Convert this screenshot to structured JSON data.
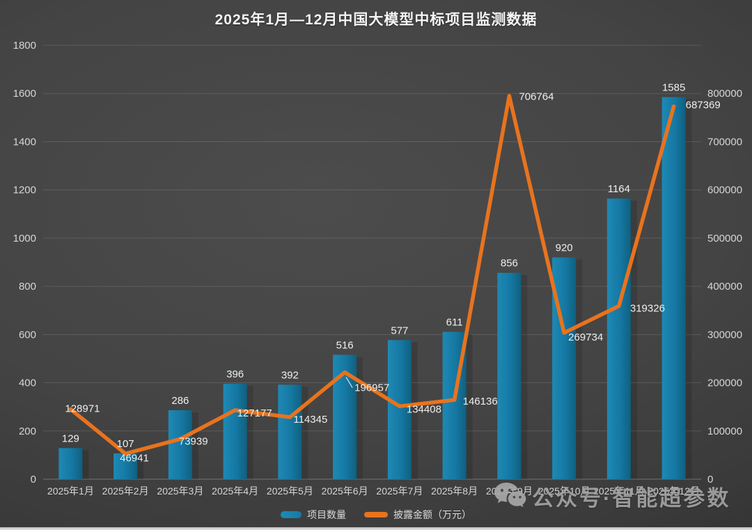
{
  "title": "2025年1月—12月中国大模型中标项目监测数据",
  "chart_data": {
    "type": "bar",
    "subtype": "bar-line-combo",
    "categories": [
      "2025年1月",
      "2025年2月",
      "2025年3月",
      "2025年4月",
      "2025年5月",
      "2025年6月",
      "2025年7月",
      "2025年8月",
      "2025年9月",
      "2025年10月",
      "2025年11月",
      "2025年12月"
    ],
    "series": [
      {
        "name": "项目数量",
        "type": "bar",
        "axis": "left",
        "values": [
          129,
          107,
          286,
          396,
          392,
          516,
          577,
          611,
          856,
          920,
          1164,
          1585
        ]
      },
      {
        "name": "披露金额（万元）",
        "type": "line",
        "axis": "right",
        "values": [
          128971,
          46941,
          73939,
          127177,
          114345,
          196957,
          134408,
          146136,
          706764,
          269734,
          319326,
          687369
        ]
      }
    ],
    "title": "2025年1月—12月中国大模型中标项目监测数据",
    "xlabel": "",
    "ylabel_left": "",
    "ylabel_right": "",
    "left_axis": {
      "min": 0,
      "max": 1800,
      "step": 200,
      "ticks": [
        "0",
        "200",
        "400",
        "600",
        "800",
        "1000",
        "1200",
        "1400",
        "1600",
        "1800"
      ]
    },
    "right_axis": {
      "min": 0,
      "max": 800000,
      "step": 100000,
      "ticks": [
        "0",
        "100000",
        "200000",
        "300000",
        "400000",
        "500000",
        "600000",
        "700000",
        "800000"
      ]
    },
    "grid": "horizontal",
    "legend_position": "bottom",
    "data_labels": true
  },
  "legend": {
    "bar_label": "项目数量",
    "line_label": "披露金额（万元）"
  },
  "watermark": {
    "icon": "wechat-icon",
    "text": "公众号·智能超参数"
  },
  "colors": {
    "bar": "#1779A4",
    "bar_light": "#1F8CB8",
    "bar_dark": "#0F5F80",
    "line": "#E8731E",
    "background": "#434343",
    "grid": "#6a6a6a",
    "axis_text": "#d6d6d6",
    "label_text": "#efefef",
    "watermark": "#a2a2a2"
  }
}
